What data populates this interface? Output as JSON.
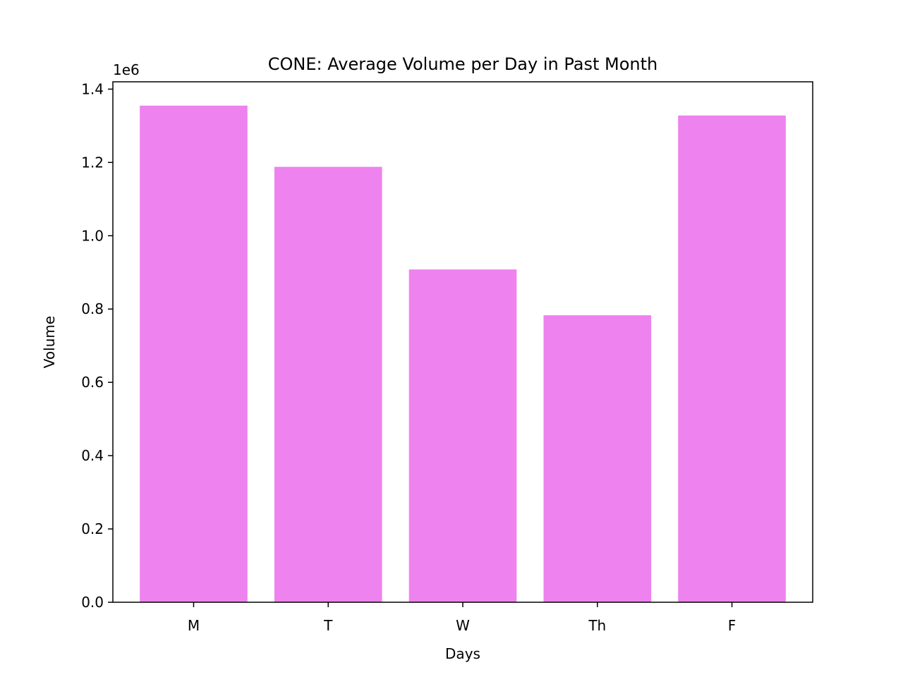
{
  "chart_data": {
    "type": "bar",
    "title": "CONE: Average Volume per Day in Past Month",
    "xlabel": "Days",
    "ylabel": "Volume",
    "y_offset_label": "1e6",
    "categories": [
      "M",
      "T",
      "W",
      "Th",
      "F"
    ],
    "values": [
      1355000,
      1188000,
      908000,
      783000,
      1328000
    ],
    "ylim": [
      0,
      1420000
    ],
    "yticks": [
      0,
      200000,
      400000,
      600000,
      800000,
      1000000,
      1200000,
      1400000
    ],
    "ytick_labels": [
      "0.0",
      "0.2",
      "0.4",
      "0.6",
      "0.8",
      "1.0",
      "1.2",
      "1.4"
    ],
    "bar_color": "#ee82ee",
    "grid": false,
    "legend": "none"
  }
}
